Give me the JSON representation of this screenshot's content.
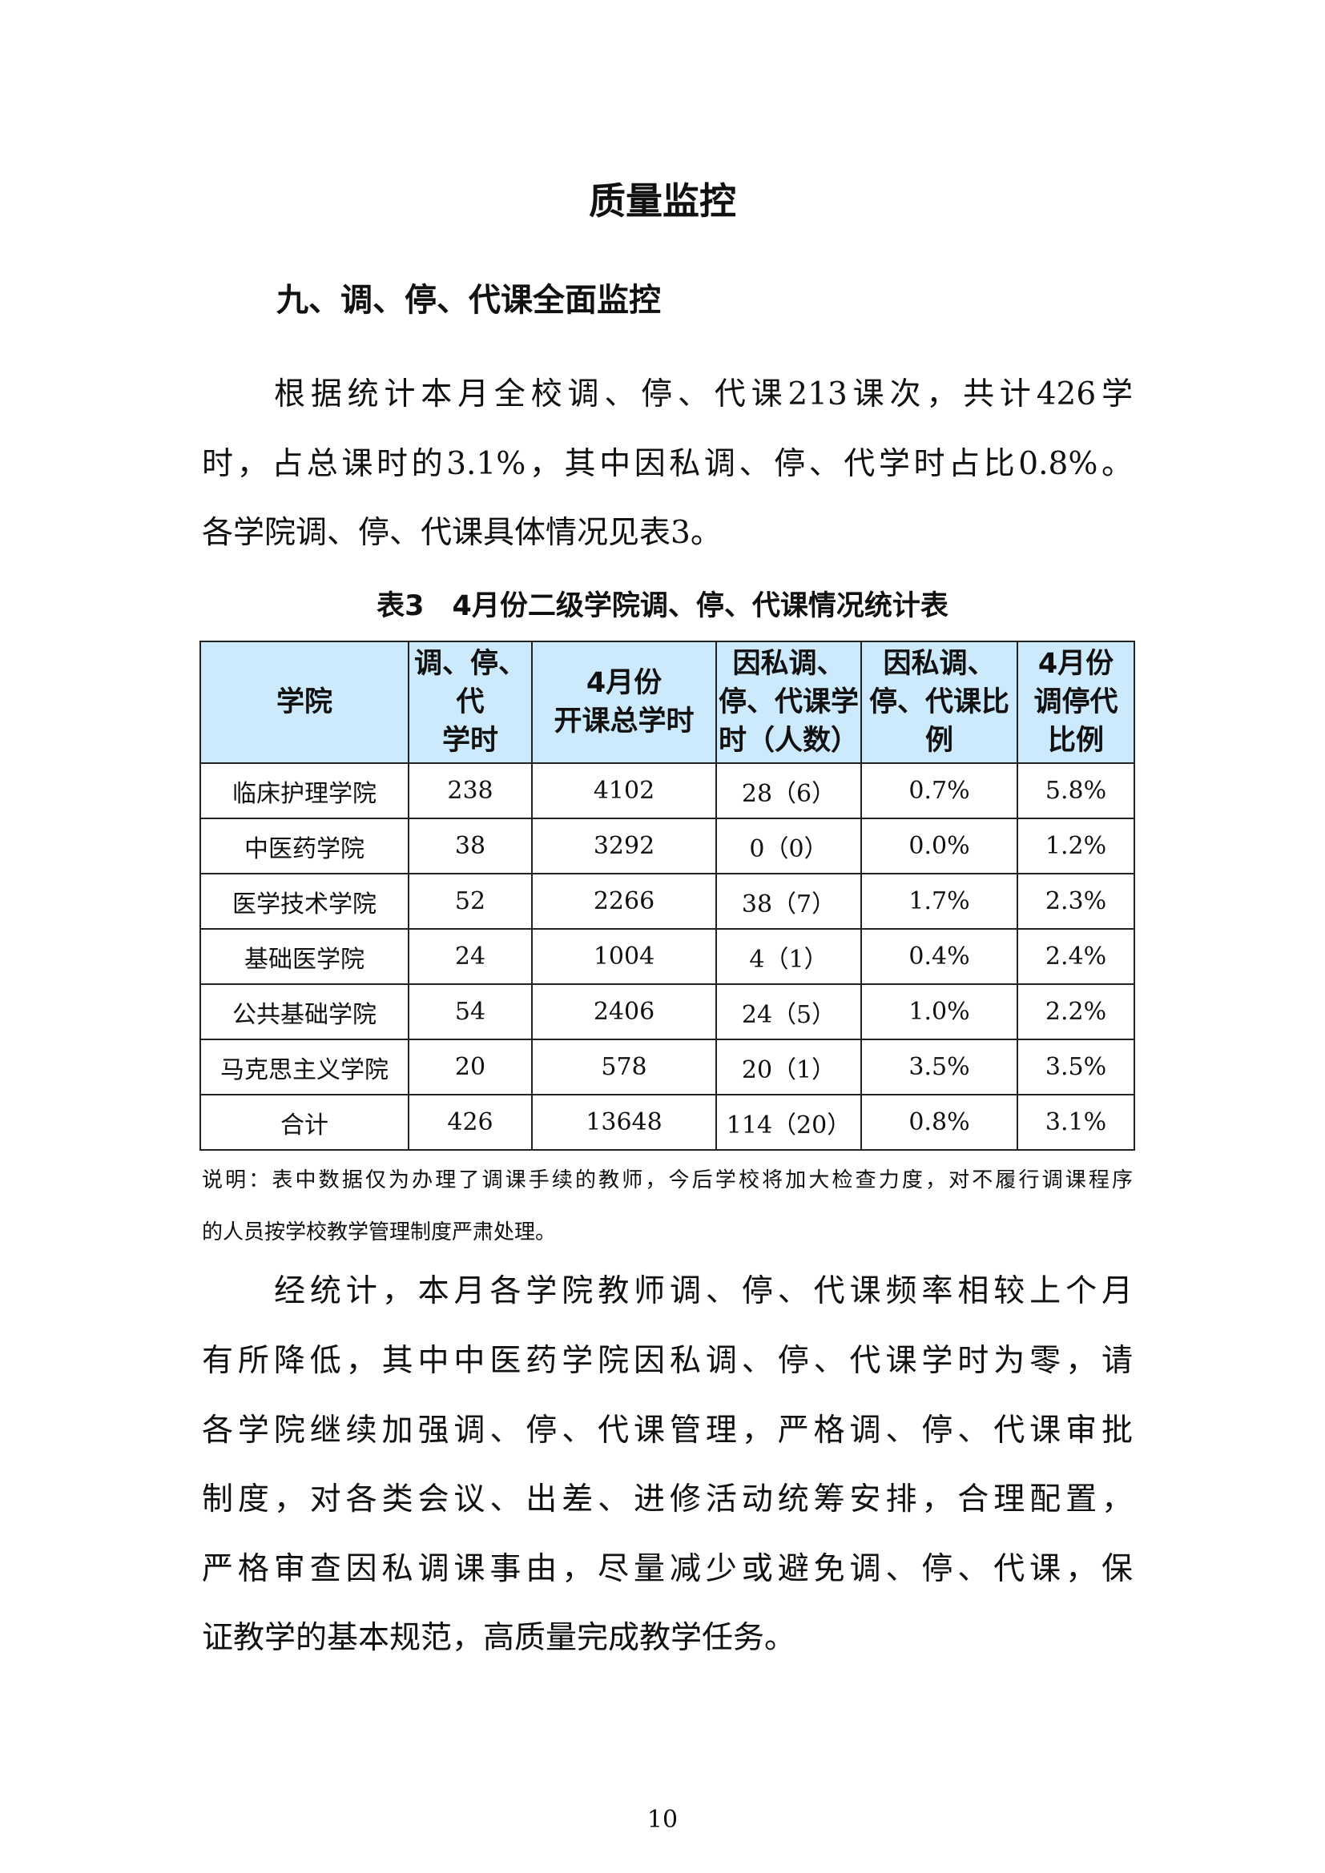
{
  "page_title": "质量监控",
  "section_heading": "九、调、停、代课全面监控",
  "paragraph1_lines": [
    "根据统计本月全校调、停、代课213课次，共计426学",
    "时，占总课时的3.1%，其中因私调、停、代学时占比0.8%。",
    "各学院调、停、代课具体情况见表3。"
  ],
  "table_caption": "表3　4月份二级学院调、停、代课情况统计表",
  "table": {
    "headers": [
      "学院",
      "调、停、代\n学时",
      "4月份\n开课总学时",
      "因私调、停、代课学时（人数）",
      "因私调、停、代课比例",
      "4月份调停代比例"
    ],
    "rows": [
      [
        "临床护理学院",
        "238",
        "4102",
        "28（6）",
        "0.7%",
        "5.8%"
      ],
      [
        "中医药学院",
        "38",
        "3292",
        "0（0）",
        "0.0%",
        "1.2%"
      ],
      [
        "医学技术学院",
        "52",
        "2266",
        "38（7）",
        "1.7%",
        "2.3%"
      ],
      [
        "基础医学院",
        "24",
        "1004",
        "4（1）",
        "0.4%",
        "2.4%"
      ],
      [
        "公共基础学院",
        "54",
        "2406",
        "24（5）",
        "1.0%",
        "2.2%"
      ],
      [
        "马克思主义学院",
        "20",
        "578",
        "20（1）",
        "3.5%",
        "3.5%"
      ],
      [
        "合计",
        "426",
        "13648",
        "114（20）",
        "0.8%",
        "3.1%"
      ]
    ]
  },
  "note_lines": [
    "说明：表中数据仅为办理了调课手续的教师，今后学校将加大检查力度，对不履行调课程序",
    "的人员按学校教学管理制度严肃处理。"
  ],
  "paragraph2_lines": [
    "经统计，本月各学院教师调、停、代课频率相较上个月",
    "有所降低，其中中医药学院因私调、停、代课学时为零，请",
    "各学院继续加强调、停、代课管理，严格调、停、代课审批",
    "制度，对各类会议、出差、进修活动统筹安排，合理配置，",
    "严格审查因私调课事由，尽量减少或避免调、停、代课，保",
    "证教学的基本规范，高质量完成教学任务。"
  ],
  "page_number": "10",
  "colors": {
    "header_bg": "#cdeafd",
    "border": "#222222"
  }
}
